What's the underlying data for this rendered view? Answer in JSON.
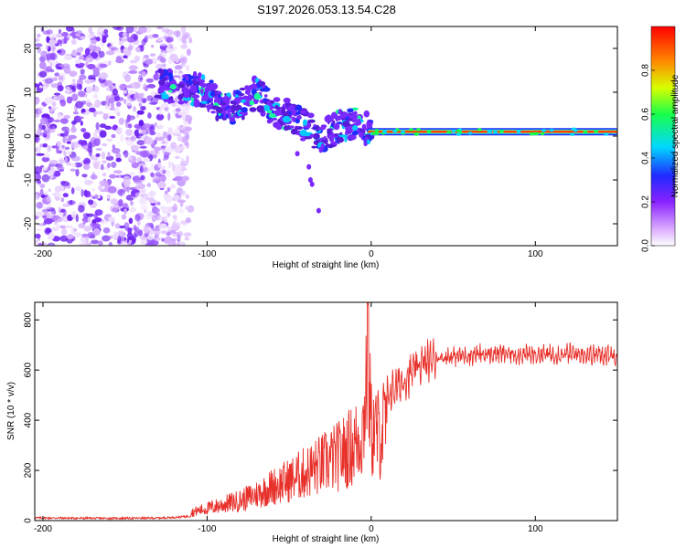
{
  "title": "S197.2026.053.13.54.C28",
  "chart_data": [
    {
      "type": "heatmap",
      "name": "spectrogram",
      "xlabel": "Height of straight line (km)",
      "ylabel": "Frequency (Hz)",
      "xlim": [
        -205,
        150
      ],
      "ylim": [
        -25,
        25
      ],
      "xticks": [
        -200,
        -100,
        0,
        100
      ],
      "xtick_labels": [
        "-200",
        "-100",
        "0",
        "100"
      ],
      "yticks": [
        -20,
        -10,
        0,
        10,
        20
      ],
      "ytick_labels": [
        "-20",
        "-10",
        "0",
        "10",
        "20"
      ],
      "ridge": {
        "x": [
          -130,
          -120,
          -110,
          -100,
          -90,
          -80,
          -70,
          -60,
          -50,
          -40,
          -30,
          -20,
          -10,
          0,
          20,
          40,
          60,
          80,
          100,
          120,
          150
        ],
        "y": [
          12,
          11,
          11,
          10,
          6,
          7,
          10,
          6,
          5,
          2,
          0,
          2,
          3,
          1,
          1,
          1,
          1,
          1,
          1,
          1,
          1
        ]
      },
      "colorbar": {
        "label": "Normalized spectral amplitude",
        "ticks": [
          0.0,
          0.2,
          0.4,
          0.6,
          0.8
        ],
        "tick_labels": [
          "0.0",
          "0.2",
          "0.4",
          "0.6",
          "0.8"
        ],
        "range": [
          0,
          1
        ]
      }
    },
    {
      "type": "line",
      "name": "snr",
      "xlabel": "Height of straight line (km)",
      "ylabel": "SNR (10 * v/v)",
      "xlim": [
        -205,
        150
      ],
      "ylim": [
        0,
        870
      ],
      "xticks": [
        -200,
        -100,
        0,
        100
      ],
      "xtick_labels": [
        "-200",
        "-100",
        "0",
        "100"
      ],
      "yticks": [
        0,
        200,
        400,
        600,
        800
      ],
      "ytick_labels": [
        "0",
        "200",
        "400",
        "600",
        "800"
      ],
      "series": [
        {
          "name": "SNR",
          "color": "#e8302a",
          "x": [
            -205,
            -190,
            -175,
            -160,
            -145,
            -130,
            -120,
            -110,
            -100,
            -90,
            -80,
            -70,
            -60,
            -50,
            -40,
            -30,
            -20,
            -10,
            -5,
            -2,
            0,
            5,
            10,
            20,
            30,
            40,
            60,
            80,
            100,
            120,
            150
          ],
          "y": [
            20,
            18,
            16,
            15,
            16,
            18,
            25,
            40,
            60,
            80,
            100,
            130,
            170,
            200,
            240,
            280,
            320,
            380,
            450,
            860,
            450,
            430,
            500,
            560,
            620,
            650,
            660,
            665,
            660,
            665,
            660
          ]
        }
      ]
    }
  ]
}
